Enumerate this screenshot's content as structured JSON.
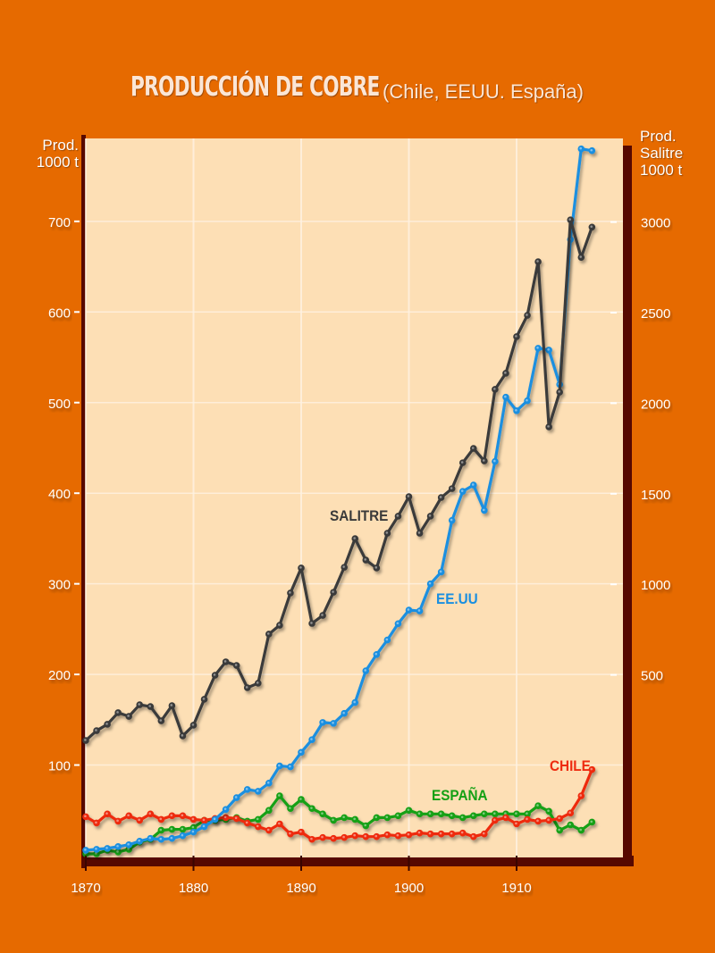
{
  "chart_data": {
    "type": "line",
    "title": "PRODUCCIÓN DE COBRE",
    "subtitle": "(Chile, EEUU. España)",
    "xlabel": "",
    "ylabel_left": [
      "Prod.",
      "1000 t"
    ],
    "ylabel_right": [
      "Prod.",
      "Salitre",
      "1000 t"
    ],
    "xlim": [
      1870,
      1920
    ],
    "ylim_left": [
      0,
      790
    ],
    "ylim_right": [
      -500,
      3400
    ],
    "x_ticks": [
      "1870",
      "1880",
      "1890",
      "1900",
      "1910"
    ],
    "y_ticks_left": [
      "100",
      "200",
      "300",
      "400",
      "500",
      "600",
      "700"
    ],
    "y_ticks_right": [
      "500",
      "1000",
      "1500",
      "2000",
      "2500",
      "3000"
    ],
    "grid": true,
    "x": [
      1870,
      1871,
      1872,
      1873,
      1874,
      1875,
      1876,
      1877,
      1878,
      1879,
      1880,
      1881,
      1882,
      1883,
      1884,
      1885,
      1886,
      1887,
      1888,
      1889,
      1890,
      1891,
      1892,
      1893,
      1894,
      1895,
      1896,
      1897,
      1898,
      1899,
      1900,
      1901,
      1902,
      1903,
      1904,
      1905,
      1906,
      1907,
      1908,
      1909,
      1910,
      1911,
      1912,
      1913,
      1914,
      1915,
      1916,
      1917
    ],
    "series": [
      {
        "name": "SALITRE",
        "axis": "right",
        "color": "#3a3a3a",
        "values": [
          138,
          192,
          227,
          291,
          271,
          335,
          325,
          246,
          330,
          163,
          222,
          365,
          498,
          572,
          552,
          429,
          454,
          725,
          774,
          952,
          1090,
          784,
          828,
          956,
          1094,
          1252,
          1134,
          1090,
          1282,
          1376,
          1484,
          1282,
          1376,
          1479,
          1528,
          1671,
          1750,
          1681,
          2076,
          2165,
          2367,
          2485,
          2781,
          1869,
          2061,
          3012,
          2805,
          2972
        ]
      },
      {
        "name": "EE.UU",
        "axis": "left",
        "color": "#1a8fe0",
        "values": [
          6,
          7,
          8,
          10,
          12,
          16,
          19,
          18,
          19,
          22,
          26,
          32,
          40,
          51,
          64,
          73,
          71,
          80,
          99,
          98,
          114,
          128,
          147,
          146,
          157,
          169,
          204,
          222,
          238,
          256,
          271,
          270,
          300,
          313,
          370,
          402,
          409,
          381,
          435,
          506,
          491,
          502,
          560,
          558,
          520,
          680,
          780,
          778
        ]
      },
      {
        "name": "CHILE",
        "axis": "left",
        "color": "#ee2c10",
        "values": [
          43,
          36,
          46,
          38,
          44,
          39,
          46,
          40,
          44,
          44,
          40,
          39,
          41,
          42,
          41,
          36,
          32,
          28,
          35,
          24,
          26,
          18,
          20,
          19,
          20,
          22,
          21,
          21,
          23,
          22,
          23,
          25,
          24,
          24,
          24,
          25,
          21,
          24,
          39,
          42,
          35,
          40,
          38,
          39,
          41,
          47,
          66,
          95
        ]
      },
      {
        "name": "ESPAÑA",
        "axis": "left",
        "color": "#14a014",
        "values": [
          2,
          2,
          6,
          4,
          7,
          15,
          18,
          28,
          29,
          29,
          31,
          39,
          39,
          40,
          42,
          38,
          40,
          50,
          66,
          52,
          62,
          52,
          46,
          39,
          42,
          40,
          33,
          42,
          42,
          44,
          50,
          46,
          46,
          46,
          44,
          42,
          44,
          46,
          46,
          46,
          46,
          46,
          55,
          49,
          28,
          34,
          28,
          37
        ]
      }
    ]
  }
}
